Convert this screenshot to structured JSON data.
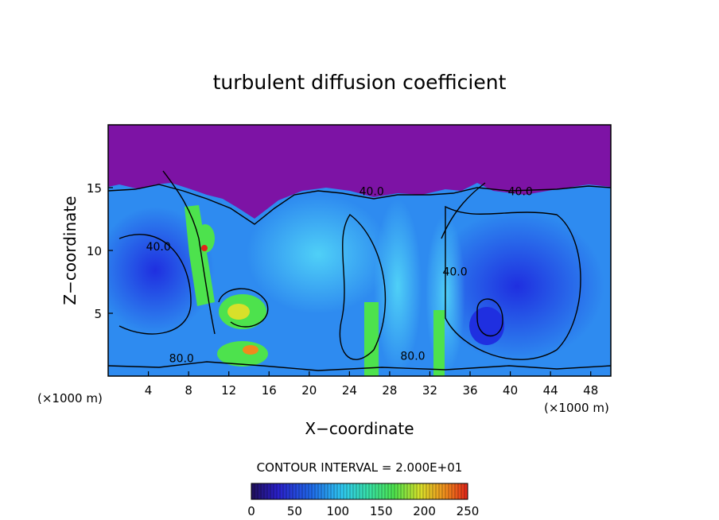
{
  "chart_data": {
    "type": "heatmap",
    "title": "turbulent diffusion coefficient",
    "xlabel": "X−coordinate",
    "ylabel": "Z−coordinate",
    "x_unit_left": "(×1000 m)",
    "x_unit_right": "(×1000 m)",
    "x_ticks": [
      4,
      8,
      12,
      16,
      20,
      24,
      28,
      32,
      36,
      40,
      44,
      48
    ],
    "y_ticks": [
      5,
      10,
      15
    ],
    "xlim": [
      0,
      50
    ],
    "ylim": [
      0,
      20
    ],
    "contour_interval_text": "CONTOUR INTERVAL = 2.000E+01",
    "contour_labels": [
      {
        "text": "40.0",
        "x": 26.2,
        "y": 14.4
      },
      {
        "text": "40.0",
        "x": 41.0,
        "y": 14.4
      },
      {
        "text": "40.0",
        "x": 34.5,
        "y": 8.0
      },
      {
        "text": "40.0",
        "x": 5.0,
        "y": 10.0
      },
      {
        "text": "80.0",
        "x": 30.3,
        "y": 1.3
      },
      {
        "text": "80.0",
        "x": 7.3,
        "y": 1.1
      }
    ],
    "colorbar": {
      "ticks": [
        "0",
        "50",
        "100",
        "150",
        "200",
        "250"
      ],
      "range": [
        0,
        250
      ]
    },
    "colors": {
      "background": "#ffffff",
      "top_layer": "#7d13a5",
      "low": "#1f2fe0",
      "mid": "#27a7f5",
      "cyan": "#3ee8f4",
      "green": "#4de24d",
      "yellow": "#d8e02a",
      "orange": "#f08a1c",
      "red": "#e2231a"
    }
  }
}
